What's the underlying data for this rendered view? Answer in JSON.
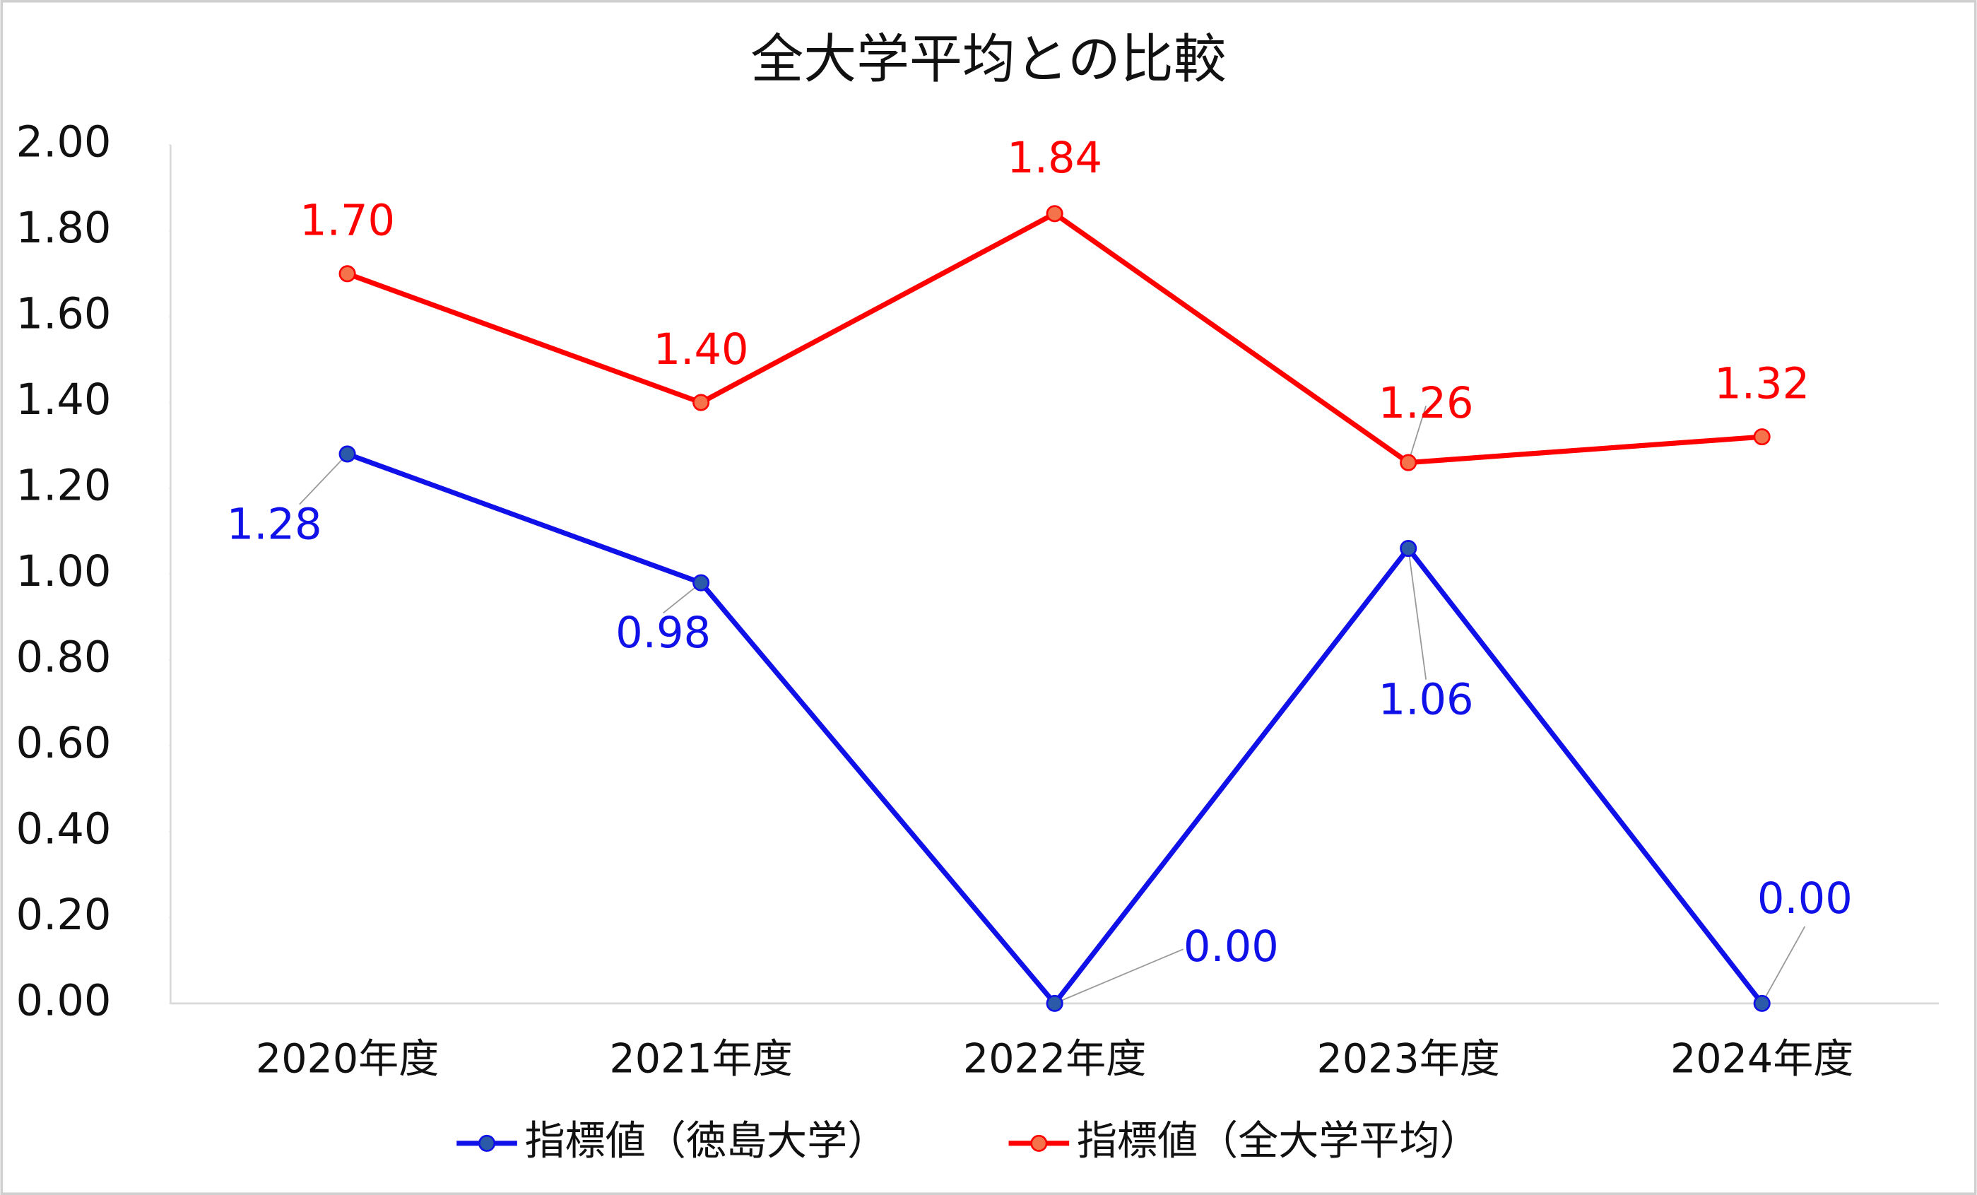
{
  "chart_data": {
    "type": "line",
    "title": "全大学平均との比較",
    "categories": [
      "2020年度",
      "2021年度",
      "2022年度",
      "2023年度",
      "2024年度"
    ],
    "series": [
      {
        "name": "指標値（徳島大学）",
        "color": "#1010e8",
        "marker_color": "#2b5aa8",
        "values": [
          1.28,
          0.98,
          0,
          1.06,
          0
        ],
        "value_labels": [
          "1.28",
          "0.98",
          "0.00",
          "1.06",
          "0.00"
        ]
      },
      {
        "name": "指標値（全大学平均）",
        "color": "#ff0000",
        "marker_color": "#f4734a",
        "values": [
          1.7,
          1.4,
          1.84,
          1.26,
          1.32
        ],
        "value_labels": [
          "1.70",
          "1.40",
          "1.84",
          "1.26",
          "1.32"
        ]
      }
    ],
    "ylim": [
      0,
      2
    ],
    "yticks": [
      {
        "value": 0,
        "label": "0.00"
      },
      {
        "value": 0.2,
        "label": "0.20"
      },
      {
        "value": 0.4,
        "label": "0.40"
      },
      {
        "value": 0.6,
        "label": "0.60"
      },
      {
        "value": 0.8,
        "label": "0.80"
      },
      {
        "value": 1,
        "label": "1.00"
      },
      {
        "value": 1.2,
        "label": "1.20"
      },
      {
        "value": 1.4,
        "label": "1.40"
      },
      {
        "value": 1.6,
        "label": "1.60"
      },
      {
        "value": 1.8,
        "label": "1.80"
      },
      {
        "value": 2,
        "label": "2.00"
      }
    ],
    "legend": "bottom"
  }
}
